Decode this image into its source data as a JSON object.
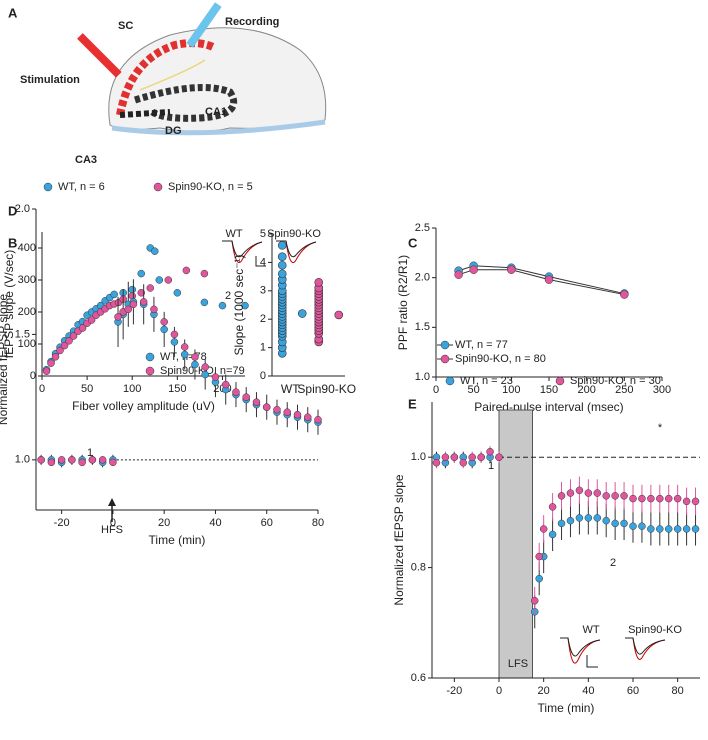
{
  "panel_labels": [
    "A",
    "B",
    "C",
    "D",
    "E"
  ],
  "diagram": {
    "labels": [
      "Stimulation",
      "SC",
      "Recording",
      "CA1",
      "CA3",
      "DG"
    ]
  },
  "chart_data": [
    {
      "type": "scatter",
      "xlabel": "Fiber volley amplitude (uV)",
      "ylabel": "fEPSP slope (V/sec)",
      "xlim": [
        0,
        225
      ],
      "xticks": [
        0,
        50,
        100,
        150,
        200
      ],
      "ylim": [
        0,
        450
      ],
      "yticks": [
        0,
        100,
        200,
        300,
        400
      ],
      "series": [
        {
          "name": "WT, n=78",
          "color": "#3aa2dc",
          "x": [
            5,
            10,
            15,
            20,
            25,
            30,
            35,
            40,
            45,
            50,
            55,
            60,
            65,
            70,
            75,
            80,
            90,
            100,
            110,
            120,
            125,
            130,
            150,
            180,
            200,
            225
          ],
          "values": [
            20,
            45,
            70,
            90,
            110,
            125,
            140,
            160,
            170,
            190,
            200,
            210,
            220,
            235,
            245,
            255,
            260,
            270,
            320,
            400,
            390,
            300,
            260,
            230,
            220,
            220
          ]
        },
        {
          "name": "Spin90-KO, n=79",
          "color": "#e0559c",
          "x": [
            5,
            10,
            15,
            20,
            25,
            30,
            35,
            40,
            45,
            50,
            55,
            60,
            65,
            70,
            75,
            80,
            85,
            90,
            100,
            110,
            120,
            140,
            160,
            180
          ],
          "values": [
            15,
            40,
            60,
            80,
            95,
            110,
            125,
            140,
            150,
            165,
            175,
            190,
            200,
            210,
            220,
            225,
            230,
            240,
            250,
            260,
            275,
            300,
            330,
            320
          ]
        }
      ]
    },
    {
      "type": "strip",
      "ylabel": "Slope (1000 sec⁻¹)",
      "categories": [
        "WT",
        "Spin90-KO"
      ],
      "ylim": [
        0,
        5
      ],
      "yticks": [
        0,
        1,
        2,
        3,
        4,
        5
      ],
      "groups": [
        {
          "color": "#3aa2dc",
          "values": [
            0.8,
            1.0,
            1.2,
            1.4,
            1.5,
            1.6,
            1.7,
            1.8,
            1.9,
            2.0,
            2.1,
            2.2,
            2.3,
            2.4,
            2.5,
            2.6,
            2.7,
            2.8,
            2.9,
            3.0,
            3.2,
            3.4,
            3.6,
            3.9,
            4.2,
            4.6
          ],
          "mean": 2.2
        },
        {
          "color": "#e0559c",
          "values": [
            1.2,
            1.3,
            1.5,
            1.6,
            1.7,
            1.8,
            1.9,
            2.0,
            2.1,
            2.2,
            2.3,
            2.4,
            2.5,
            2.6,
            2.7,
            2.8,
            2.9,
            3.0,
            3.1,
            3.3
          ],
          "mean": 2.15
        }
      ]
    },
    {
      "type": "line",
      "xlabel": "Paired-pulse interval (msec)",
      "ylabel": "PPF ratio (R2/R1)",
      "x": [
        30,
        50,
        100,
        150,
        250
      ],
      "xlim": [
        0,
        300
      ],
      "xticks": [
        0,
        50,
        100,
        150,
        200,
        250,
        300
      ],
      "ylim": [
        1,
        2.5
      ],
      "yticks": [
        {
          "value": 1,
          "label": "1.0"
        },
        1.5,
        {
          "value": 2,
          "label": "2.0"
        },
        2.5
      ],
      "series": [
        {
          "name": "WT, n = 77",
          "color": "#3aa2dc",
          "values": [
            2.07,
            2.12,
            2.1,
            2.01,
            1.84
          ]
        },
        {
          "name": "Spin90-KO, n = 80",
          "color": "#e0559c",
          "values": [
            2.03,
            2.08,
            2.08,
            1.98,
            1.83
          ]
        }
      ]
    },
    {
      "type": "scatter",
      "xlabel": "Time (min)",
      "ylabel": "Normalized fEPSP slope",
      "x": [
        -28,
        -24,
        -20,
        -16,
        -12,
        -8,
        -4,
        0,
        2,
        4,
        6,
        8,
        12,
        16,
        20,
        24,
        28,
        32,
        36,
        40,
        44,
        48,
        52,
        56,
        60,
        64,
        68,
        72,
        76,
        80
      ],
      "xlim": [
        -30,
        80
      ],
      "xticks": [
        -20,
        0,
        20,
        40,
        60,
        80
      ],
      "ylim": [
        0.8,
        2.0
      ],
      "yticks": [
        {
          "value": 1,
          "label": "1.0"
        },
        1.5,
        {
          "value": 2,
          "label": "2.0"
        }
      ],
      "reference_line": 1,
      "annotations": [
        "1",
        "2",
        "HFS",
        "WT",
        "Spin90-KO"
      ],
      "series": [
        {
          "name": "WT, n = 6",
          "color": "#3aa2dc",
          "values": [
            1.0,
            1.0,
            0.99,
            1.0,
            1.0,
            1.0,
            0.99,
            1.0,
            1.55,
            1.58,
            1.62,
            1.63,
            1.62,
            1.58,
            1.52,
            1.47,
            1.42,
            1.38,
            1.34,
            1.31,
            1.28,
            1.26,
            1.24,
            1.22,
            1.21,
            1.19,
            1.18,
            1.17,
            1.16,
            1.15
          ],
          "errors": [
            0.02,
            0.02,
            0.02,
            0.02,
            0.02,
            0.02,
            0.02,
            0.02,
            0.1,
            0.1,
            0.09,
            0.09,
            0.08,
            0.07,
            0.07,
            0.06,
            0.06,
            0.06,
            0.06,
            0.06,
            0.06,
            0.05,
            0.05,
            0.05,
            0.05,
            0.05,
            0.05,
            0.05,
            0.05,
            0.05
          ]
        },
        {
          "name": "Spin90-KO, n = 5",
          "color": "#e0559c",
          "values": [
            1.0,
            0.99,
            1.0,
            1.0,
            0.99,
            1.0,
            1.0,
            0.99,
            1.57,
            1.59,
            1.6,
            1.62,
            1.63,
            1.6,
            1.55,
            1.5,
            1.45,
            1.41,
            1.37,
            1.33,
            1.3,
            1.27,
            1.25,
            1.23,
            1.21,
            1.2,
            1.19,
            1.18,
            1.17,
            1.16
          ]
        }
      ]
    },
    {
      "type": "scatter",
      "xlabel": "Time (min)",
      "ylabel": "Normalized fEPSP slope",
      "x": [
        -28,
        -24,
        -20,
        -16,
        -12,
        -8,
        -4,
        0,
        16,
        18,
        20,
        24,
        28,
        32,
        36,
        40,
        44,
        48,
        52,
        56,
        60,
        64,
        68,
        72,
        76,
        80,
        84,
        88
      ],
      "xlim": [
        -30,
        90
      ],
      "xticks": [
        -20,
        0,
        20,
        40,
        60,
        80
      ],
      "ylim": [
        0.6,
        1.1
      ],
      "yticks": [
        0.6,
        0.8,
        {
          "value": 1,
          "label": "1.0"
        }
      ],
      "reference_line": 1,
      "shaded_x": [
        0,
        15
      ],
      "annotations": [
        "1",
        "2",
        "*",
        "LFS",
        "WT",
        "Spin90-KO"
      ],
      "series": [
        {
          "name": "WT, n = 23",
          "color": "#3aa2dc",
          "values": [
            1.0,
            0.99,
            1.0,
            1.0,
            0.99,
            1.0,
            1.0,
            1.0,
            0.72,
            0.78,
            0.82,
            0.86,
            0.88,
            0.885,
            0.89,
            0.89,
            0.89,
            0.885,
            0.88,
            0.88,
            0.875,
            0.875,
            0.87,
            0.87,
            0.87,
            0.87,
            0.87,
            0.87
          ],
          "errors": [
            0.01,
            0.01,
            0.01,
            0.01,
            0.01,
            0.01,
            0.01,
            0.01,
            0.03,
            0.03,
            0.03,
            0.03,
            0.03,
            0.03,
            0.03,
            0.03,
            0.03,
            0.03,
            0.03,
            0.03,
            0.03,
            0.03,
            0.03,
            0.03,
            0.03,
            0.03,
            0.03,
            0.03
          ]
        },
        {
          "name": "Spin90-KO, n = 30",
          "color": "#e0559c",
          "values": [
            0.99,
            1.0,
            1.0,
            0.99,
            1.0,
            1.0,
            1.01,
            1.0,
            0.74,
            0.82,
            0.87,
            0.91,
            0.93,
            0.935,
            0.94,
            0.935,
            0.935,
            0.93,
            0.93,
            0.93,
            0.925,
            0.925,
            0.925,
            0.925,
            0.925,
            0.925,
            0.92,
            0.92
          ],
          "errors": [
            0.01,
            0.01,
            0.01,
            0.01,
            0.01,
            0.01,
            0.01,
            0.01,
            0.025,
            0.025,
            0.025,
            0.025,
            0.025,
            0.025,
            0.025,
            0.025,
            0.025,
            0.025,
            0.025,
            0.025,
            0.025,
            0.025,
            0.025,
            0.025,
            0.025,
            0.025,
            0.025,
            0.025
          ]
        }
      ]
    }
  ]
}
